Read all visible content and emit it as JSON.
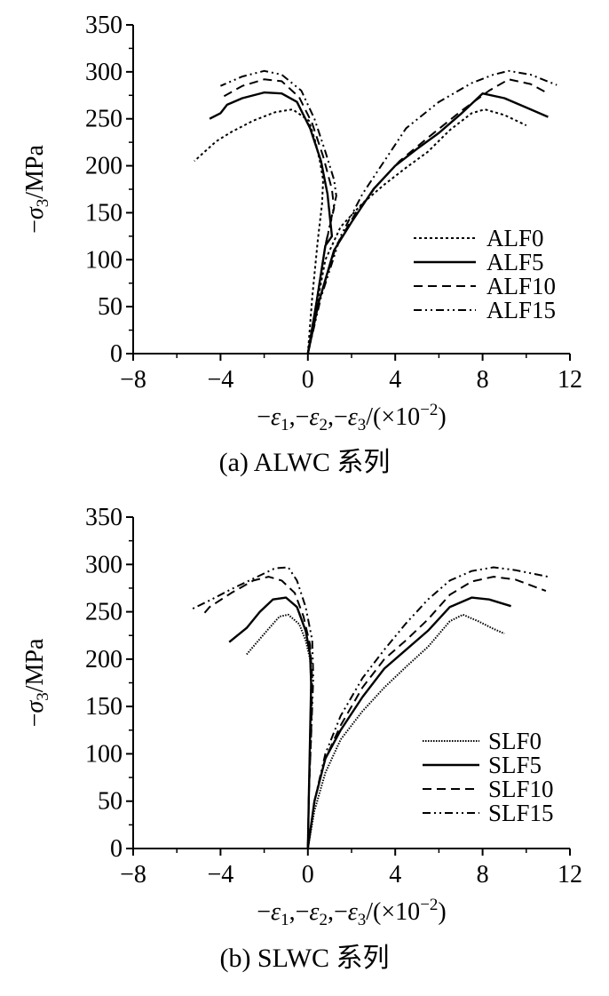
{
  "charts": [
    {
      "caption": "(a) ALWC 系列",
      "legend_placement": "right-middle",
      "chart_data": {
        "type": "line",
        "xlabel": "−ε1,−ε2,−ε3/(×10−2)",
        "ylabel": "−σ3/MPa",
        "xlim": [
          -8,
          12
        ],
        "ylim": [
          0,
          350
        ],
        "xticks": [
          "−8",
          "−4",
          "0",
          "4",
          "8",
          "12"
        ],
        "yticks": [
          "0",
          "50",
          "100",
          "150",
          "200",
          "250",
          "300",
          "350"
        ],
        "grid": false,
        "series": [
          {
            "name": "ALF0",
            "dash": "dotted",
            "branches": [
              [
                [
                  0,
                  0
                ],
                [
                  0.2,
                  60
                ],
                [
                  0.45,
                  120
                ],
                [
                  0.65,
                  160
                ],
                [
                  0.7,
                  185
                ],
                [
                  0.55,
                  205
                ],
                [
                  0.35,
                  225
                ],
                [
                  0.05,
                  248
                ],
                [
                  -0.7,
                  260
                ],
                [
                  -1.5,
                  257
                ],
                [
                  -2.5,
                  248
                ],
                [
                  -3.5,
                  236
                ],
                [
                  -4.2,
                  226
                ],
                [
                  -5.2,
                  205
                ]
              ],
              [
                [
                  0,
                  0
                ],
                [
                  0.4,
                  50
                ],
                [
                  0.8,
                  100
                ],
                [
                  1.5,
                  135
                ],
                [
                  2.5,
                  160
                ],
                [
                  3.5,
                  180
                ],
                [
                  4.5,
                  198
                ],
                [
                  5.5,
                  215
                ],
                [
                  6.5,
                  238
                ],
                [
                  7.5,
                  256
                ],
                [
                  8.1,
                  260
                ],
                [
                  9,
                  254
                ],
                [
                  10,
                  243
                ]
              ]
            ]
          },
          {
            "name": "ALF5",
            "dash": "solid",
            "branches": [
              [
                [
                  0,
                  0
                ],
                [
                  0.4,
                  55
                ],
                [
                  0.8,
                  115
                ],
                [
                  1.1,
                  125
                ],
                [
                  0.9,
                  170
                ],
                [
                  0.6,
                  205
                ],
                [
                  0.1,
                  240
                ],
                [
                  -0.5,
                  268
                ],
                [
                  -1.2,
                  277
                ],
                [
                  -2,
                  278
                ],
                [
                  -3,
                  272
                ],
                [
                  -3.7,
                  265
                ],
                [
                  -4,
                  256
                ],
                [
                  -4.5,
                  250
                ]
              ],
              [
                [
                  0,
                  0
                ],
                [
                  0.5,
                  55
                ],
                [
                  1.2,
                  110
                ],
                [
                  2,
                  140
                ],
                [
                  3,
                  175
                ],
                [
                  4,
                  200
                ],
                [
                  5,
                  218
                ],
                [
                  6,
                  235
                ],
                [
                  7,
                  255
                ],
                [
                  8,
                  277
                ],
                [
                  9,
                  272
                ],
                [
                  10,
                  262
                ],
                [
                  11,
                  252
                ]
              ]
            ]
          },
          {
            "name": "ALF10",
            "dash": "dashed",
            "branches": [
              [
                [
                  0,
                  0
                ],
                [
                  0.4,
                  55
                ],
                [
                  0.8,
                  115
                ],
                [
                  1.2,
                  155
                ],
                [
                  1.1,
                  175
                ],
                [
                  0.7,
                  210
                ],
                [
                  0.2,
                  245
                ],
                [
                  -0.4,
                  273
                ],
                [
                  -1.2,
                  290
                ],
                [
                  -2,
                  292
                ],
                [
                  -3,
                  285
                ],
                [
                  -4,
                  272
                ]
              ],
              [
                [
                  0,
                  0
                ],
                [
                  0.5,
                  55
                ],
                [
                  1.3,
                  115
                ],
                [
                  2.2,
                  150
                ],
                [
                  3.2,
                  180
                ],
                [
                  4.2,
                  205
                ],
                [
                  5.5,
                  230
                ],
                [
                  7,
                  258
                ],
                [
                  8.3,
                  280
                ],
                [
                  9.2,
                  292
                ],
                [
                  10.2,
                  287
                ],
                [
                  11,
                  277
                ]
              ]
            ]
          },
          {
            "name": "ALF15",
            "dash": "dashdotdot",
            "branches": [
              [
                [
                  0,
                  0
                ],
                [
                  0.4,
                  55
                ],
                [
                  0.8,
                  115
                ],
                [
                  1.3,
                  168
                ],
                [
                  1.2,
                  185
                ],
                [
                  0.8,
                  215
                ],
                [
                  0.3,
                  250
                ],
                [
                  -0.3,
                  280
                ],
                [
                  -1.2,
                  297
                ],
                [
                  -2,
                  301
                ],
                [
                  -3,
                  295
                ],
                [
                  -4,
                  285
                ]
              ],
              [
                [
                  0,
                  0
                ],
                [
                  0.6,
                  60
                ],
                [
                  1.5,
                  125
                ],
                [
                  2.5,
                  170
                ],
                [
                  3.5,
                  205
                ],
                [
                  4.5,
                  240
                ],
                [
                  6,
                  268
                ],
                [
                  7.5,
                  288
                ],
                [
                  8.5,
                  297
                ],
                [
                  9.2,
                  301
                ],
                [
                  10.2,
                  297
                ],
                [
                  11.4,
                  286
                ]
              ]
            ]
          }
        ]
      }
    },
    {
      "caption": "(b) SLWC 系列",
      "legend_placement": "bottom-right",
      "chart_data": {
        "type": "line",
        "xlabel": "−ε1,−ε2,−ε3/(×10−2)",
        "ylabel": "−σ3/MPa",
        "xlim": [
          -8,
          12
        ],
        "ylim": [
          0,
          350
        ],
        "xticks": [
          "−8",
          "−4",
          "0",
          "4",
          "8",
          "12"
        ],
        "yticks": [
          "0",
          "50",
          "100",
          "150",
          "200",
          "250",
          "300",
          "350"
        ],
        "grid": false,
        "series": [
          {
            "name": "SLF0",
            "dash": "fine-dotted",
            "branches": [
              [
                [
                  0,
                  0
                ],
                [
                  0.05,
                  60
                ],
                [
                  0.1,
                  120
                ],
                [
                  0.15,
                  170
                ],
                [
                  0.1,
                  200
                ],
                [
                  -0.1,
                  220
                ],
                [
                  -0.4,
                  237
                ],
                [
                  -0.9,
                  247
                ],
                [
                  -1.3,
                  245
                ],
                [
                  -1.8,
                  232
                ],
                [
                  -2.4,
                  216
                ],
                [
                  -2.8,
                  205
                ]
              ],
              [
                [
                  0,
                  0
                ],
                [
                  0.3,
                  40
                ],
                [
                  0.8,
                  80
                ],
                [
                  1.5,
                  115
                ],
                [
                  2.5,
                  145
                ],
                [
                  3.5,
                  170
                ],
                [
                  4.5,
                  192
                ],
                [
                  5.5,
                  213
                ],
                [
                  6.5,
                  240
                ],
                [
                  7.1,
                  247
                ],
                [
                  7.8,
                  240
                ],
                [
                  8.5,
                  232
                ],
                [
                  9,
                  227
                ]
              ]
            ]
          },
          {
            "name": "SLF5",
            "dash": "solid",
            "branches": [
              [
                [
                  0,
                  0
                ],
                [
                  0.05,
                  60
                ],
                [
                  0.1,
                  120
                ],
                [
                  0.15,
                  175
                ],
                [
                  0.1,
                  205
                ],
                [
                  -0.1,
                  230
                ],
                [
                  -0.5,
                  255
                ],
                [
                  -1,
                  265
                ],
                [
                  -1.6,
                  263
                ],
                [
                  -2.2,
                  250
                ],
                [
                  -2.8,
                  233
                ],
                [
                  -3.6,
                  218
                ]
              ],
              [
                [
                  0,
                  0
                ],
                [
                  0.3,
                  50
                ],
                [
                  0.8,
                  95
                ],
                [
                  1.5,
                  125
                ],
                [
                  2.5,
                  160
                ],
                [
                  3.5,
                  190
                ],
                [
                  4.5,
                  210
                ],
                [
                  5.5,
                  230
                ],
                [
                  6.5,
                  255
                ],
                [
                  7.5,
                  265
                ],
                [
                  8.3,
                  263
                ],
                [
                  9.3,
                  256
                ]
              ]
            ]
          },
          {
            "name": "SLF10",
            "dash": "dashed",
            "branches": [
              [
                [
                  0,
                  0
                ],
                [
                  0.05,
                  60
                ],
                [
                  0.15,
                  120
                ],
                [
                  0.2,
                  180
                ],
                [
                  0.1,
                  215
                ],
                [
                  -0.2,
                  245
                ],
                [
                  -0.6,
                  270
                ],
                [
                  -1.2,
                  283
                ],
                [
                  -1.8,
                  287
                ],
                [
                  -2.5,
                  283
                ],
                [
                  -3.5,
                  270
                ],
                [
                  -4.5,
                  255
                ],
                [
                  -4.8,
                  247
                ]
              ],
              [
                [
                  0,
                  0
                ],
                [
                  0.3,
                  50
                ],
                [
                  0.8,
                  95
                ],
                [
                  1.5,
                  130
                ],
                [
                  2.5,
                  170
                ],
                [
                  3.5,
                  200
                ],
                [
                  4.5,
                  220
                ],
                [
                  5.5,
                  242
                ],
                [
                  6.5,
                  268
                ],
                [
                  7.5,
                  282
                ],
                [
                  8.5,
                  287
                ],
                [
                  9.5,
                  284
                ],
                [
                  10.9,
                  272
                ]
              ]
            ]
          },
          {
            "name": "SLF15",
            "dash": "dashdotdot",
            "branches": [
              [
                [
                  0,
                  0
                ],
                [
                  0.05,
                  60
                ],
                [
                  0.15,
                  120
                ],
                [
                  0.25,
                  180
                ],
                [
                  0.2,
                  220
                ],
                [
                  -0.1,
                  255
                ],
                [
                  -0.5,
                  283
                ],
                [
                  -0.9,
                  297
                ],
                [
                  -1.5,
                  296
                ],
                [
                  -2.5,
                  285
                ],
                [
                  -3.5,
                  274
                ],
                [
                  -4.5,
                  262
                ],
                [
                  -5.3,
                  253
                ]
              ],
              [
                [
                  0,
                  0
                ],
                [
                  0.3,
                  50
                ],
                [
                  0.8,
                  100
                ],
                [
                  1.5,
                  140
                ],
                [
                  2.5,
                  180
                ],
                [
                  3.5,
                  210
                ],
                [
                  4.5,
                  238
                ],
                [
                  5.5,
                  263
                ],
                [
                  6.5,
                  283
                ],
                [
                  7.5,
                  293
                ],
                [
                  8.5,
                  297
                ],
                [
                  9.5,
                  294
                ],
                [
                  11,
                  287
                ]
              ]
            ]
          }
        ]
      }
    }
  ]
}
